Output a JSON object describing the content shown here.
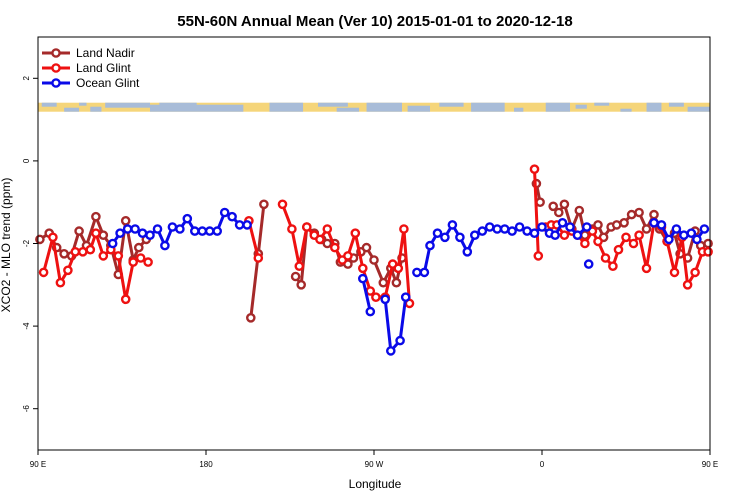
{
  "chart_data": {
    "type": "line",
    "title": "55N-60N Annual Mean (Ver 10)   2015-01-01 to 2020-12-18",
    "xlabel": "Longitude",
    "ylabel": "XCO2 - MLO trend (ppm)",
    "x_unit": "degrees longitude, continuous from 90 E eastward through 180 to 90 E + 360",
    "xlim": [
      90,
      450
    ],
    "ylim": [
      -7,
      3
    ],
    "x_ticks": [
      {
        "value": 90,
        "label": "90 E"
      },
      {
        "value": 180,
        "label": "180"
      },
      {
        "value": 270,
        "label": "90 W"
      },
      {
        "value": 360,
        "label": "0"
      },
      {
        "value": 450,
        "label": "90 E"
      },
      {
        "value": 540,
        "label": "180"
      }
    ],
    "y_ticks": [
      {
        "value": 2,
        "label": "2"
      },
      {
        "value": 0,
        "label": "0"
      },
      {
        "value": -2,
        "label": "-2"
      },
      {
        "value": -4,
        "label": "-4"
      },
      {
        "value": -6,
        "label": "-6"
      }
    ],
    "legend_position": "top-left",
    "land_mask_band": {
      "land_color": "#f5d57a",
      "ocean_color": "#a8bcd8",
      "y_center": 1.3
    },
    "series": [
      {
        "name": "Land Nadir",
        "color": "#a52a2a",
        "segments": [
          [
            [
              91,
              -1.9
            ],
            [
              96,
              -1.75
            ],
            [
              100,
              -2.1
            ],
            [
              104,
              -2.25
            ],
            [
              108,
              -2.3
            ],
            [
              112,
              -1.7
            ],
            [
              116,
              -2.05
            ],
            [
              121,
              -1.35
            ],
            [
              125,
              -1.8
            ],
            [
              129,
              -2.05
            ],
            [
              133,
              -2.75
            ],
            [
              137,
              -1.45
            ],
            [
              141,
              -2.4
            ],
            [
              144,
              -2.1
            ],
            [
              148,
              -1.9
            ]
          ],
          [
            [
              204,
              -3.8
            ],
            [
              208,
              -2.25
            ],
            [
              211,
              -1.05
            ]
          ],
          [
            [
              228,
              -2.8
            ],
            [
              231,
              -3.0
            ],
            [
              234,
              -1.6
            ],
            [
              238,
              -1.75
            ],
            [
              242,
              -1.9
            ],
            [
              245,
              -2.0
            ],
            [
              249,
              -2.0
            ],
            [
              252,
              -2.45
            ],
            [
              256,
              -2.5
            ],
            [
              259,
              -2.35
            ],
            [
              263,
              -2.2
            ],
            [
              266,
              -2.1
            ],
            [
              270,
              -2.4
            ],
            [
              275,
              -2.95
            ],
            [
              279,
              -2.6
            ],
            [
              282,
              -2.95
            ],
            [
              285,
              -2.35
            ]
          ],
          [
            [
              357,
              -0.55
            ],
            [
              359,
              -1.0
            ]
          ],
          [
            [
              366,
              -1.1
            ],
            [
              369,
              -1.25
            ],
            [
              372,
              -1.05
            ],
            [
              376,
              -1.65
            ],
            [
              380,
              -1.2
            ],
            [
              383,
              -1.8
            ],
            [
              387,
              -1.65
            ],
            [
              390,
              -1.55
            ],
            [
              393,
              -1.85
            ],
            [
              397,
              -1.6
            ],
            [
              400,
              -1.55
            ],
            [
              404,
              -1.5
            ],
            [
              408,
              -1.3
            ],
            [
              412,
              -1.25
            ],
            [
              416,
              -1.65
            ],
            [
              420,
              -1.3
            ],
            [
              423,
              -1.65
            ],
            [
              427,
              -1.95
            ],
            [
              431,
              -1.75
            ],
            [
              434,
              -2.25
            ],
            [
              438,
              -2.35
            ],
            [
              442,
              -1.7
            ],
            [
              445,
              -2.05
            ],
            [
              449,
              -2.0
            ],
            [
              453,
              -1.35
            ],
            [
              457,
              -1.85
            ],
            [
              460,
              -1.95
            ],
            [
              464,
              -2.8
            ],
            [
              468,
              -1.45
            ],
            [
              471,
              -2.35
            ],
            [
              475,
              -2.15
            ],
            [
              478,
              -1.9
            ]
          ]
        ]
      },
      {
        "name": "Land Glint",
        "color": "#ee1111",
        "segments": [
          [
            [
              93,
              -2.7
            ],
            [
              98,
              -1.85
            ],
            [
              102,
              -2.95
            ],
            [
              106,
              -2.65
            ],
            [
              110,
              -2.2
            ],
            [
              114,
              -2.2
            ],
            [
              118,
              -2.15
            ],
            [
              121,
              -1.75
            ],
            [
              125,
              -2.3
            ],
            [
              129,
              -2.15
            ],
            [
              133,
              -2.3
            ],
            [
              137,
              -3.35
            ],
            [
              141,
              -2.45
            ],
            [
              145,
              -2.35
            ],
            [
              149,
              -2.45
            ]
          ],
          [
            [
              203,
              -1.45
            ],
            [
              208,
              -2.35
            ]
          ],
          [
            [
              221,
              -1.05
            ],
            [
              226,
              -1.65
            ],
            [
              230,
              -2.55
            ],
            [
              234,
              -1.6
            ],
            [
              238,
              -1.8
            ],
            [
              241,
              -1.9
            ],
            [
              245,
              -1.65
            ],
            [
              249,
              -2.1
            ],
            [
              253,
              -2.4
            ],
            [
              256,
              -2.3
            ],
            [
              260,
              -1.75
            ],
            [
              264,
              -2.6
            ],
            [
              268,
              -3.15
            ],
            [
              271,
              -3.3
            ],
            [
              276,
              -3.3
            ],
            [
              280,
              -2.5
            ],
            [
              283,
              -2.6
            ],
            [
              286,
              -1.65
            ],
            [
              289,
              -3.45
            ]
          ],
          [
            [
              356,
              -0.2
            ],
            [
              358,
              -2.3
            ]
          ],
          [
            [
              362,
              -1.6
            ],
            [
              365,
              -1.55
            ],
            [
              368,
              -1.55
            ],
            [
              372,
              -1.8
            ],
            [
              376,
              -1.7
            ],
            [
              379,
              -1.8
            ],
            [
              383,
              -2.0
            ],
            [
              387,
              -1.7
            ],
            [
              390,
              -1.95
            ],
            [
              394,
              -2.35
            ],
            [
              398,
              -2.55
            ],
            [
              401,
              -2.15
            ],
            [
              405,
              -1.85
            ],
            [
              409,
              -2.0
            ],
            [
              412,
              -1.8
            ],
            [
              416,
              -2.6
            ],
            [
              420,
              -1.5
            ],
            [
              424,
              -1.6
            ],
            [
              427,
              -1.95
            ],
            [
              431,
              -2.7
            ],
            [
              435,
              -1.85
            ],
            [
              438,
              -3.0
            ],
            [
              442,
              -2.7
            ],
            [
              446,
              -2.2
            ],
            [
              449,
              -2.2
            ],
            [
              453,
              -2.0
            ],
            [
              457,
              -1.9
            ],
            [
              461,
              -1.95
            ],
            [
              465,
              -2.45
            ],
            [
              469,
              -3.35
            ],
            [
              472,
              -2.45
            ],
            [
              476,
              -2.2
            ],
            [
              479,
              -2.55
            ]
          ]
        ]
      },
      {
        "name": "Ocean Glint",
        "color": "#0a0ae8",
        "segments": [
          [
            [
              130,
              -2.0
            ],
            [
              134,
              -1.75
            ],
            [
              138,
              -1.65
            ],
            [
              142,
              -1.65
            ],
            [
              146,
              -1.75
            ],
            [
              150,
              -1.8
            ],
            [
              154,
              -1.65
            ],
            [
              158,
              -2.05
            ],
            [
              162,
              -1.6
            ],
            [
              166,
              -1.65
            ],
            [
              170,
              -1.4
            ],
            [
              174,
              -1.7
            ],
            [
              178,
              -1.7
            ],
            [
              182,
              -1.7
            ],
            [
              186,
              -1.7
            ],
            [
              190,
              -1.25
            ],
            [
              194,
              -1.35
            ],
            [
              198,
              -1.55
            ],
            [
              202,
              -1.55
            ]
          ],
          [
            [
              264,
              -2.85
            ],
            [
              268,
              -3.65
            ]
          ],
          [
            [
              276,
              -3.35
            ],
            [
              279,
              -4.6
            ],
            [
              284,
              -4.35
            ],
            [
              287,
              -3.3
            ]
          ],
          [
            [
              293,
              -2.7
            ],
            [
              297,
              -2.7
            ],
            [
              300,
              -2.05
            ],
            [
              304,
              -1.75
            ],
            [
              308,
              -1.85
            ],
            [
              312,
              -1.55
            ],
            [
              316,
              -1.85
            ],
            [
              320,
              -2.2
            ],
            [
              324,
              -1.8
            ],
            [
              328,
              -1.7
            ],
            [
              332,
              -1.6
            ],
            [
              336,
              -1.65
            ],
            [
              340,
              -1.65
            ],
            [
              344,
              -1.7
            ],
            [
              348,
              -1.6
            ],
            [
              352,
              -1.7
            ],
            [
              356,
              -1.75
            ],
            [
              360,
              -1.6
            ],
            [
              364,
              -1.75
            ],
            [
              367,
              -1.8
            ],
            [
              371,
              -1.5
            ],
            [
              375,
              -1.6
            ],
            [
              379,
              -1.8
            ],
            [
              384,
              -1.6
            ]
          ],
          [
            [
              385,
              -2.5
            ]
          ],
          [
            [
              420,
              -1.5
            ],
            [
              424,
              -1.55
            ],
            [
              428,
              -1.9
            ],
            [
              432,
              -1.65
            ],
            [
              436,
              -1.8
            ],
            [
              440,
              -1.75
            ],
            [
              443,
              -1.9
            ],
            [
              447,
              -1.65
            ],
            [
              451,
              -1.55
            ],
            [
              455,
              -1.65
            ],
            [
              459,
              -1.9
            ],
            [
              463,
              -1.75
            ],
            [
              467,
              -1.65
            ],
            [
              471,
              -1.65
            ],
            [
              475,
              -1.7
            ],
            [
              479,
              -1.8
            ],
            [
              483,
              -1.65
            ],
            [
              487,
              -2.05
            ],
            [
              491,
              -1.55
            ]
          ]
        ]
      }
    ]
  }
}
